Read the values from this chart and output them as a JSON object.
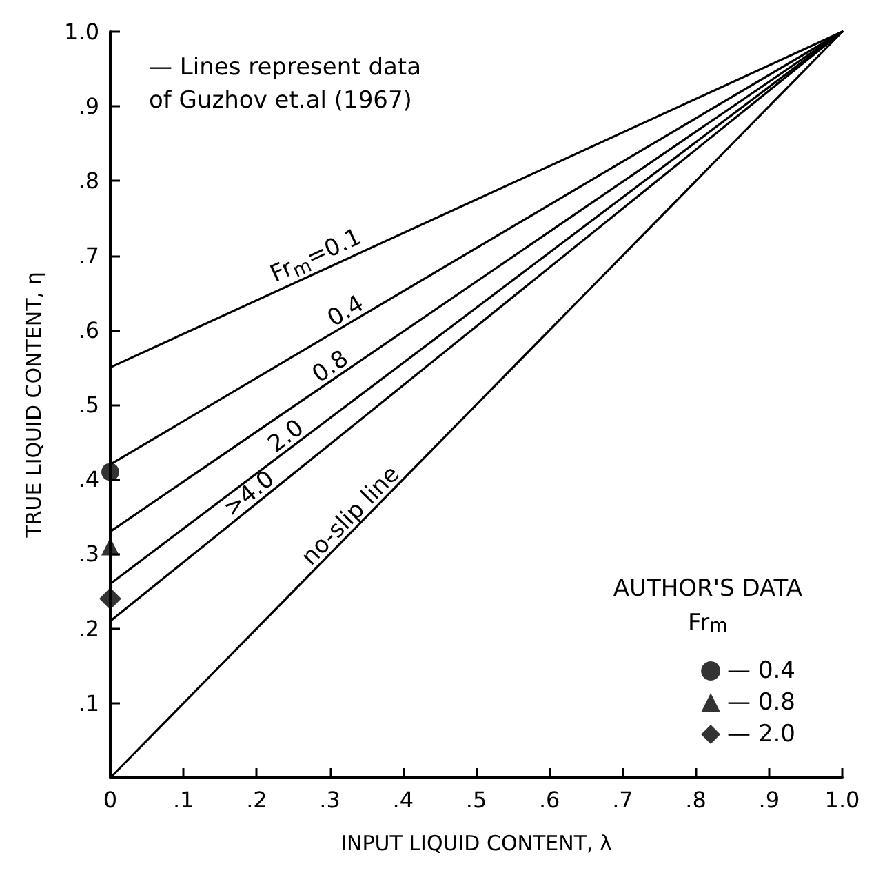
{
  "chart_data": {
    "type": "line",
    "xlabel": "INPUT LIQUID CONTENT, λ",
    "ylabel": "TRUE LIQUID CONTENT, η",
    "annotations": [
      "— Lines represent data\nof Guzhov et.al (1967)"
    ],
    "legend_title": "AUTHOR'S DATA\nFr$_{m}$",
    "xlim": [
      0,
      1
    ],
    "ylim": [
      0,
      1
    ],
    "xticks": [
      0,
      {
        "value": 0.1,
        "label": ".1"
      },
      {
        "value": 0.2,
        "label": ".2"
      },
      {
        "value": 0.3,
        "label": ".3"
      },
      {
        "value": 0.4,
        "label": ".4"
      },
      {
        "value": 0.5,
        "label": ".5"
      },
      {
        "value": 0.6,
        "label": ".6"
      },
      {
        "value": 0.7,
        "label": ".7"
      },
      {
        "value": 0.8,
        "label": ".8"
      },
      {
        "value": 0.9,
        "label": ".9"
      },
      {
        "value": 1,
        "label": "1.0"
      }
    ],
    "yticks": [
      {
        "value": 0,
        "label": null
      },
      {
        "value": 0.1,
        "label": ".1"
      },
      {
        "value": 0.2,
        "label": ".2"
      },
      {
        "value": 0.3,
        "label": ".3"
      },
      {
        "value": 0.4,
        "label": ".4"
      },
      {
        "value": 0.5,
        "label": ".5"
      },
      {
        "value": 0.6,
        "label": ".6"
      },
      {
        "value": 0.7,
        "label": ".7"
      },
      {
        "value": 0.8,
        "label": ".8"
      },
      {
        "value": 0.9,
        "label": ".9"
      },
      {
        "value": 1,
        "label": "1.0"
      }
    ],
    "grid": false,
    "legend": "bottom right",
    "line_style": "solid",
    "x": [
      0,
      1
    ],
    "series": [
      {
        "name": "Fr$_{m}$=0.1",
        "color": "#000000",
        "values": [
          0.55,
          1
        ],
        "marker": "none"
      },
      {
        "name": "0.4",
        "color": "#000000",
        "values": [
          0.42,
          1
        ],
        "marker": "none"
      },
      {
        "name": "0.8",
        "color": "#000000",
        "values": [
          0.33,
          1
        ],
        "marker": "none"
      },
      {
        "name": "2.0",
        "color": "#000000",
        "values": [
          0.26,
          1
        ],
        "marker": "none"
      },
      {
        "name": ">4.0",
        "color": "#000000",
        "values": [
          0.21,
          1
        ],
        "marker": "none"
      },
      {
        "name": "no-slip line",
        "color": "#000000",
        "values": [
          0,
          1
        ],
        "marker": "none"
      },
      {
        "type": "scatter",
        "name": "— 0.4",
        "color": "#000000",
        "values": [
          0.41,
          null
        ],
        "marker": "circle"
      },
      {
        "type": "scatter",
        "name": "— 0.8",
        "color": "#000000",
        "values": [
          0.31,
          null
        ],
        "marker": "triangle"
      },
      {
        "type": "scatter",
        "name": "— 2.0",
        "color": "#000000",
        "values": [
          0.24,
          null
        ],
        "marker": "diamond"
      }
    ]
  }
}
